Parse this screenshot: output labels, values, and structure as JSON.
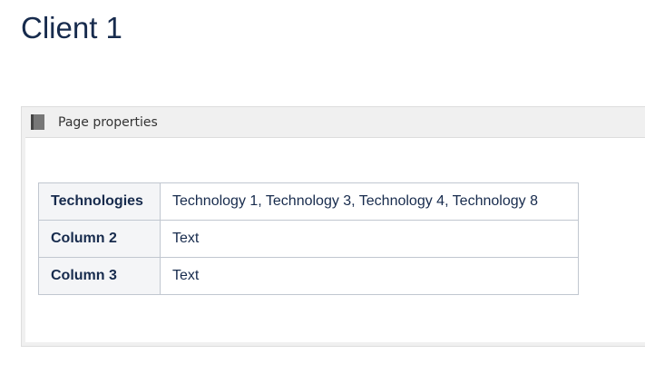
{
  "page": {
    "title": "Client 1"
  },
  "macro": {
    "title": "Page properties",
    "icon": "page-properties-icon"
  },
  "table": {
    "rows": [
      {
        "label": "Technologies",
        "value": "Technology 1, Technology 3, Technology 4, Technology 8"
      },
      {
        "label": "Column 2",
        "value": "Text"
      },
      {
        "label": "Column 3",
        "value": "Text"
      }
    ]
  }
}
